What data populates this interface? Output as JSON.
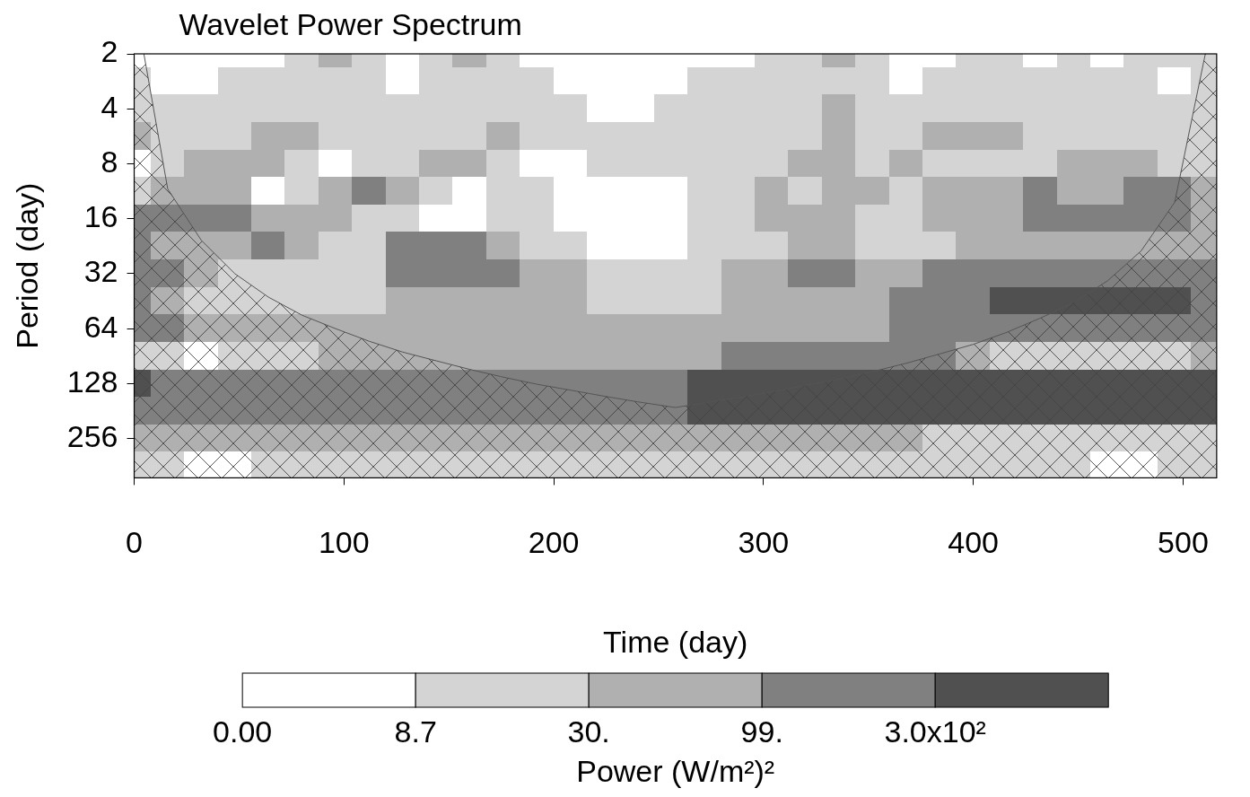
{
  "chart_data": {
    "type": "heatmap",
    "title": "Wavelet Power Spectrum",
    "x_label": "Time (day)",
    "y_label": "Period (day)",
    "log": "y",
    "grid": false,
    "xlim": [
      0,
      516
    ],
    "ylim": [
      2,
      420
    ],
    "xticks": [
      0,
      100,
      200,
      300,
      400,
      500
    ],
    "yticks": [
      2,
      4,
      8,
      16,
      32,
      64,
      128,
      256
    ],
    "x": [
      0,
      16,
      32,
      48,
      64,
      80,
      96,
      112,
      128,
      144,
      160,
      176,
      192,
      208,
      224,
      240,
      256,
      272,
      288,
      304,
      320,
      336,
      352,
      368,
      384,
      400,
      416,
      432,
      448,
      464,
      480,
      496,
      512
    ],
    "y": [
      2,
      2.83,
      4,
      5.66,
      8,
      11.3,
      16,
      22.6,
      32,
      45.3,
      64,
      90.5,
      128,
      181,
      256,
      362
    ],
    "cells": [
      [
        4,
        4,
        4,
        4,
        4,
        15,
        50,
        15,
        4,
        15,
        50,
        15,
        4,
        4,
        4,
        4,
        4,
        4,
        4,
        15,
        15,
        50,
        15,
        4,
        4,
        15,
        15,
        4,
        15,
        4,
        15,
        15,
        15
      ],
      [
        15,
        4,
        4,
        15,
        15,
        15,
        15,
        15,
        4,
        15,
        15,
        15,
        15,
        4,
        4,
        4,
        4,
        15,
        15,
        15,
        15,
        15,
        15,
        4,
        15,
        15,
        15,
        15,
        15,
        15,
        15,
        4,
        15
      ],
      [
        15,
        15,
        15,
        15,
        15,
        15,
        15,
        15,
        15,
        15,
        15,
        15,
        15,
        15,
        4,
        4,
        15,
        15,
        15,
        15,
        15,
        50,
        15,
        15,
        15,
        15,
        15,
        15,
        15,
        15,
        15,
        15,
        15
      ],
      [
        50,
        15,
        15,
        15,
        50,
        50,
        15,
        15,
        15,
        15,
        15,
        50,
        15,
        15,
        15,
        15,
        15,
        15,
        15,
        15,
        15,
        50,
        15,
        15,
        50,
        50,
        50,
        15,
        15,
        15,
        15,
        15,
        15
      ],
      [
        4,
        15,
        50,
        50,
        50,
        15,
        4,
        15,
        15,
        50,
        50,
        15,
        4,
        4,
        15,
        15,
        15,
        15,
        15,
        15,
        50,
        50,
        15,
        50,
        15,
        15,
        15,
        15,
        50,
        50,
        50,
        15,
        15
      ],
      [
        15,
        50,
        50,
        50,
        4,
        15,
        50,
        150,
        50,
        15,
        4,
        15,
        15,
        4,
        4,
        4,
        4,
        15,
        15,
        50,
        15,
        50,
        50,
        15,
        50,
        50,
        50,
        150,
        50,
        50,
        150,
        150,
        50
      ],
      [
        150,
        150,
        150,
        150,
        50,
        50,
        50,
        15,
        15,
        4,
        4,
        15,
        15,
        4,
        4,
        4,
        4,
        15,
        15,
        50,
        50,
        50,
        15,
        15,
        50,
        50,
        50,
        150,
        150,
        150,
        150,
        150,
        50
      ],
      [
        150,
        50,
        50,
        50,
        150,
        50,
        15,
        15,
        150,
        150,
        150,
        50,
        15,
        15,
        4,
        4,
        4,
        15,
        15,
        15,
        50,
        50,
        15,
        15,
        15,
        50,
        50,
        50,
        50,
        50,
        50,
        50,
        50
      ],
      [
        150,
        150,
        50,
        15,
        15,
        15,
        15,
        15,
        150,
        150,
        150,
        150,
        50,
        50,
        15,
        15,
        15,
        15,
        50,
        50,
        150,
        150,
        50,
        50,
        150,
        150,
        150,
        150,
        150,
        150,
        150,
        150,
        150
      ],
      [
        150,
        50,
        15,
        15,
        15,
        15,
        15,
        15,
        50,
        50,
        50,
        50,
        50,
        50,
        15,
        15,
        15,
        15,
        50,
        50,
        50,
        50,
        50,
        150,
        150,
        150,
        400,
        400,
        400,
        400,
        400,
        400,
        150
      ],
      [
        150,
        150,
        50,
        50,
        50,
        50,
        50,
        50,
        50,
        50,
        50,
        50,
        50,
        50,
        50,
        50,
        50,
        50,
        50,
        50,
        50,
        50,
        50,
        150,
        150,
        150,
        150,
        150,
        150,
        150,
        150,
        150,
        150
      ],
      [
        15,
        15,
        4,
        15,
        15,
        15,
        50,
        50,
        50,
        50,
        50,
        50,
        50,
        50,
        50,
        50,
        50,
        50,
        150,
        150,
        150,
        150,
        150,
        150,
        150,
        50,
        15,
        15,
        15,
        15,
        15,
        15,
        50
      ],
      [
        400,
        150,
        150,
        150,
        150,
        150,
        150,
        150,
        150,
        150,
        150,
        150,
        150,
        150,
        150,
        150,
        150,
        400,
        400,
        400,
        400,
        400,
        400,
        400,
        400,
        400,
        400,
        400,
        400,
        400,
        400,
        400,
        400
      ],
      [
        150,
        150,
        150,
        150,
        150,
        150,
        150,
        150,
        150,
        150,
        150,
        150,
        150,
        150,
        150,
        150,
        150,
        400,
        400,
        400,
        400,
        400,
        400,
        400,
        400,
        400,
        400,
        400,
        400,
        400,
        400,
        400,
        400
      ],
      [
        50,
        50,
        50,
        50,
        50,
        50,
        50,
        50,
        50,
        50,
        50,
        50,
        50,
        50,
        50,
        50,
        50,
        50,
        50,
        50,
        50,
        50,
        50,
        50,
        15,
        15,
        15,
        15,
        15,
        15,
        15,
        15,
        15
      ],
      [
        15,
        15,
        4,
        4,
        15,
        15,
        15,
        15,
        15,
        15,
        15,
        15,
        15,
        15,
        15,
        15,
        15,
        15,
        15,
        15,
        15,
        15,
        15,
        15,
        15,
        15,
        15,
        15,
        15,
        4,
        4,
        15,
        15
      ]
    ],
    "cone_of_influence": {
      "x": [
        0,
        16,
        32,
        48,
        64,
        80,
        96,
        112,
        128,
        144,
        160,
        176,
        192,
        208,
        224,
        240,
        258,
        272,
        288,
        304,
        320,
        336,
        352,
        368,
        384,
        400,
        416,
        432,
        448,
        464,
        480,
        496,
        516
      ],
      "values": [
        1,
        11,
        21,
        32,
        43,
        54,
        64,
        75,
        86,
        96,
        107,
        118,
        129,
        139,
        150,
        161,
        173,
        163,
        153,
        142,
        131,
        121,
        110,
        99,
        88,
        78,
        67,
        56,
        46,
        35,
        24,
        13,
        1
      ]
    },
    "colorbar": {
      "label": "Power (W/m²)²",
      "ticks": [
        {
          "value": 0,
          "label": "0.00"
        },
        {
          "value": 8.7,
          "label": "8.7"
        },
        {
          "value": 30,
          "label": "30."
        },
        {
          "value": 99,
          "label": "99."
        },
        {
          "value": 300,
          "label": "3.0x10²"
        }
      ],
      "colors": [
        "#ffffff",
        "#d4d4d4",
        "#b0b0b0",
        "#808080",
        "#505050"
      ]
    }
  }
}
